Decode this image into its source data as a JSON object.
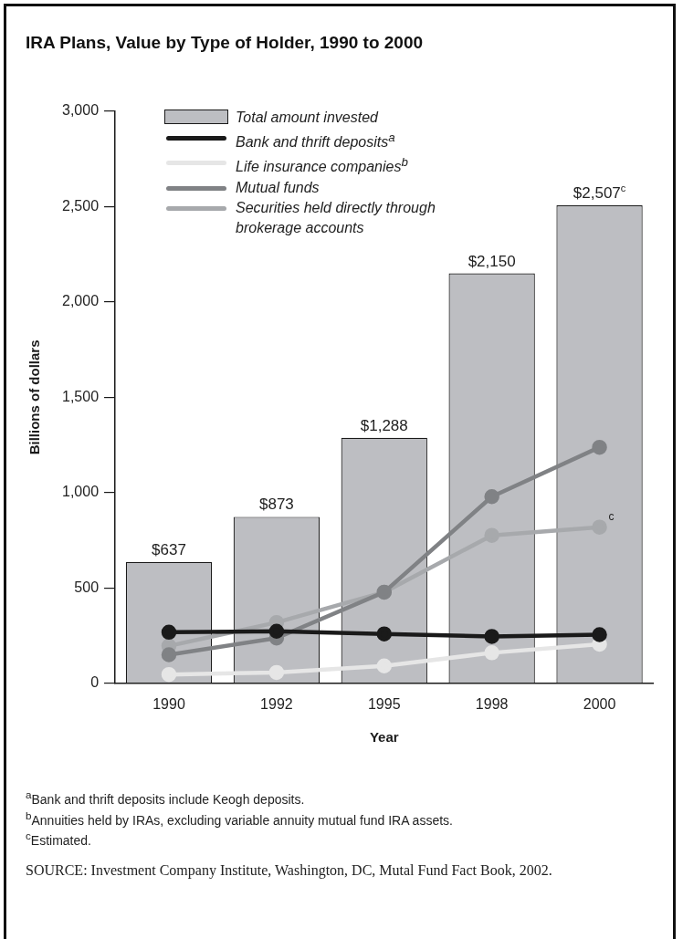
{
  "chart_data": {
    "type": "bar",
    "title": "IRA Plans, Value by Type of Holder, 1990 to 2000",
    "xlabel": "Year",
    "ylabel": "Billions of dollars",
    "categories": [
      "1990",
      "1992",
      "1995",
      "1998",
      "2000"
    ],
    "series": [
      {
        "name": "Total amount invested",
        "color": "#bdbec2",
        "values": [
          637,
          873,
          1288,
          2150,
          2507
        ],
        "value_labels": [
          "$637",
          "$873",
          "$1,288",
          "$2,150",
          "$2,507$^{c}$"
        ]
      },
      {
        "name": "Bank and thrift deposits$^{a}$",
        "type": "line",
        "color": "#1a1a1a",
        "values": [
          268,
          273,
          259,
          246,
          255
        ]
      },
      {
        "name": "Life insurance companies$^{b}$",
        "type": "line",
        "color": "#e6e6e6",
        "values": [
          46,
          57,
          91,
          160,
          205
        ]
      },
      {
        "name": "Mutual funds",
        "type": "line",
        "color": "#808285",
        "values": [
          150,
          237,
          478,
          979,
          1238
        ]
      },
      {
        "name": "Securities held directly through brokerage accounts",
        "type": "line",
        "color": "#a7a9ac",
        "values": [
          196,
          319,
          478,
          776,
          819
        ]
      }
    ],
    "ylim": [
      0,
      3000
    ],
    "yticks": [
      0,
      500,
      {
        "value": 1000,
        "label": "1,000"
      },
      {
        "value": 1500,
        "label": "1,500"
      },
      {
        "value": 2000,
        "label": "2,000"
      },
      {
        "value": 2500,
        "label": "2,500"
      },
      {
        "value": 3000,
        "label": "3,000"
      }
    ],
    "grid": false,
    "legend": "top left",
    "marker": "circle",
    "line_style": "solid",
    "annotations": [
      {
        "text": "c",
        "x": "2000",
        "y": 819
      },
      "$^{a}$Bank and thrift deposits include Keogh deposits.",
      "$^{b}$Annuities held by IRAs, excluding variable annuity mutual fund IRA assets.",
      "$^{c}$Estimated.",
      "SOURCE: Investment Company Institute, Washington, DC, Mutal Fund Fact Book, 2002."
    ]
  }
}
